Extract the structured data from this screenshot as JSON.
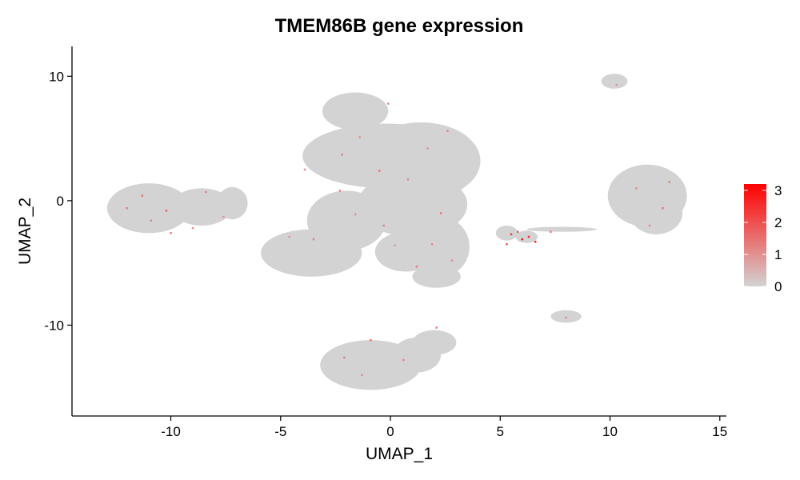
{
  "chart_data": {
    "type": "scatter",
    "title": "TMEM86B gene expression",
    "xlabel": "UMAP_1",
    "ylabel": "UMAP_2",
    "xlim": [
      -14.5,
      15.3
    ],
    "ylim": [
      -17.3,
      12.4
    ],
    "x_ticks": [
      -10,
      -5,
      0,
      5,
      10,
      15
    ],
    "y_ticks": [
      -10,
      0,
      10
    ],
    "grid": false,
    "legend": {
      "position": "right",
      "min": 0,
      "max": 3.2,
      "ticks": [
        0,
        1,
        2,
        3
      ],
      "color_low": "#d3d3d3",
      "color_high": "#ff0000"
    },
    "clusters": [
      {
        "cx": -11.0,
        "cy": -0.6,
        "rx": 1.9,
        "ry": 2.0
      },
      {
        "cx": -8.6,
        "cy": -0.5,
        "rx": 1.4,
        "ry": 1.5
      },
      {
        "cx": -7.2,
        "cy": -0.2,
        "rx": 0.7,
        "ry": 1.3
      },
      {
        "cx": -1.6,
        "cy": 7.2,
        "rx": 1.5,
        "ry": 1.5
      },
      {
        "cx": -0.2,
        "cy": 3.6,
        "rx": 3.8,
        "ry": 2.6
      },
      {
        "cx": 1.4,
        "cy": 3.2,
        "rx": 2.7,
        "ry": 3.1
      },
      {
        "cx": 1.0,
        "cy": -0.3,
        "rx": 2.5,
        "ry": 2.6
      },
      {
        "cx": -2.0,
        "cy": -1.6,
        "rx": 1.8,
        "ry": 2.4
      },
      {
        "cx": -3.6,
        "cy": -4.2,
        "rx": 2.3,
        "ry": 1.9
      },
      {
        "cx": 0.7,
        "cy": -4.1,
        "rx": 1.4,
        "ry": 1.6
      },
      {
        "cx": 2.3,
        "cy": -3.7,
        "rx": 1.3,
        "ry": 2.4
      },
      {
        "cx": 2.1,
        "cy": -6.1,
        "rx": 1.1,
        "ry": 0.9
      },
      {
        "cx": -0.9,
        "cy": -13.2,
        "rx": 2.3,
        "ry": 2.0
      },
      {
        "cx": 1.2,
        "cy": -12.4,
        "rx": 1.1,
        "ry": 1.4
      },
      {
        "cx": 2.0,
        "cy": -11.4,
        "rx": 1.0,
        "ry": 1.0
      },
      {
        "cx": 10.2,
        "cy": 9.6,
        "rx": 0.6,
        "ry": 0.6
      },
      {
        "cx": 11.7,
        "cy": 0.4,
        "rx": 1.8,
        "ry": 2.5
      },
      {
        "cx": 12.1,
        "cy": -1.0,
        "rx": 1.2,
        "ry": 1.7
      },
      {
        "cx": 5.3,
        "cy": -2.6,
        "rx": 0.5,
        "ry": 0.6
      },
      {
        "cx": 6.2,
        "cy": -2.9,
        "rx": 0.5,
        "ry": 0.5
      },
      {
        "cx": 7.8,
        "cy": -2.3,
        "rx": 1.6,
        "ry": 0.2
      },
      {
        "cx": 8.0,
        "cy": -9.3,
        "rx": 0.7,
        "ry": 0.5
      }
    ],
    "expressing_cells": [
      {
        "x": -11.3,
        "y": 0.4,
        "v": 1.5
      },
      {
        "x": -10.9,
        "y": -1.6,
        "v": 1.2
      },
      {
        "x": -10.2,
        "y": -0.8,
        "v": 1.8
      },
      {
        "x": -8.4,
        "y": 0.7,
        "v": 1.3
      },
      {
        "x": -9.0,
        "y": -2.2,
        "v": 1.1
      },
      {
        "x": -12.0,
        "y": -0.6,
        "v": 1.4
      },
      {
        "x": -7.6,
        "y": -1.3,
        "v": 1.0
      },
      {
        "x": -10.0,
        "y": -2.6,
        "v": 1.6
      },
      {
        "x": -3.9,
        "y": 2.5,
        "v": 1.2
      },
      {
        "x": -2.2,
        "y": 3.7,
        "v": 1.3
      },
      {
        "x": -1.4,
        "y": 5.1,
        "v": 1.1
      },
      {
        "x": -0.5,
        "y": 2.4,
        "v": 1.5
      },
      {
        "x": 0.8,
        "y": 1.7,
        "v": 1.2
      },
      {
        "x": 1.7,
        "y": 4.2,
        "v": 1.0
      },
      {
        "x": 2.6,
        "y": 5.6,
        "v": 1.3
      },
      {
        "x": -2.3,
        "y": 0.8,
        "v": 1.4
      },
      {
        "x": -1.6,
        "y": -1.1,
        "v": 1.1
      },
      {
        "x": -0.3,
        "y": -2.0,
        "v": 1.2
      },
      {
        "x": 2.3,
        "y": -1.0,
        "v": 1.4
      },
      {
        "x": -3.5,
        "y": -3.1,
        "v": 1.3
      },
      {
        "x": -4.6,
        "y": -2.9,
        "v": 1.0
      },
      {
        "x": 1.9,
        "y": -3.5,
        "v": 1.2
      },
      {
        "x": 2.8,
        "y": -4.8,
        "v": 1.1
      },
      {
        "x": 1.2,
        "y": -5.3,
        "v": 1.3
      },
      {
        "x": 0.2,
        "y": -3.6,
        "v": 1.0
      },
      {
        "x": -0.9,
        "y": -11.2,
        "v": 1.6
      },
      {
        "x": -2.1,
        "y": -12.6,
        "v": 1.3
      },
      {
        "x": -1.3,
        "y": -14.0,
        "v": 1.1
      },
      {
        "x": 0.6,
        "y": -12.8,
        "v": 1.2
      },
      {
        "x": 2.1,
        "y": -10.2,
        "v": 1.4
      },
      {
        "x": 5.5,
        "y": -2.7,
        "v": 2.4
      },
      {
        "x": 6.0,
        "y": -3.1,
        "v": 3.0
      },
      {
        "x": 6.3,
        "y": -2.9,
        "v": 2.6
      },
      {
        "x": 5.8,
        "y": -2.5,
        "v": 2.0
      },
      {
        "x": 6.6,
        "y": -3.3,
        "v": 2.8
      },
      {
        "x": 5.3,
        "y": -3.5,
        "v": 2.2
      },
      {
        "x": 7.3,
        "y": -2.5,
        "v": 1.4
      },
      {
        "x": 11.2,
        "y": 1.0,
        "v": 1.2
      },
      {
        "x": 12.4,
        "y": -0.6,
        "v": 1.5
      },
      {
        "x": 11.8,
        "y": -2.0,
        "v": 1.1
      },
      {
        "x": 12.7,
        "y": 1.5,
        "v": 1.3
      },
      {
        "x": 10.3,
        "y": 9.3,
        "v": 1.0
      },
      {
        "x": 8.0,
        "y": -9.4,
        "v": 1.1
      },
      {
        "x": -0.1,
        "y": 7.8,
        "v": 1.2
      }
    ]
  }
}
